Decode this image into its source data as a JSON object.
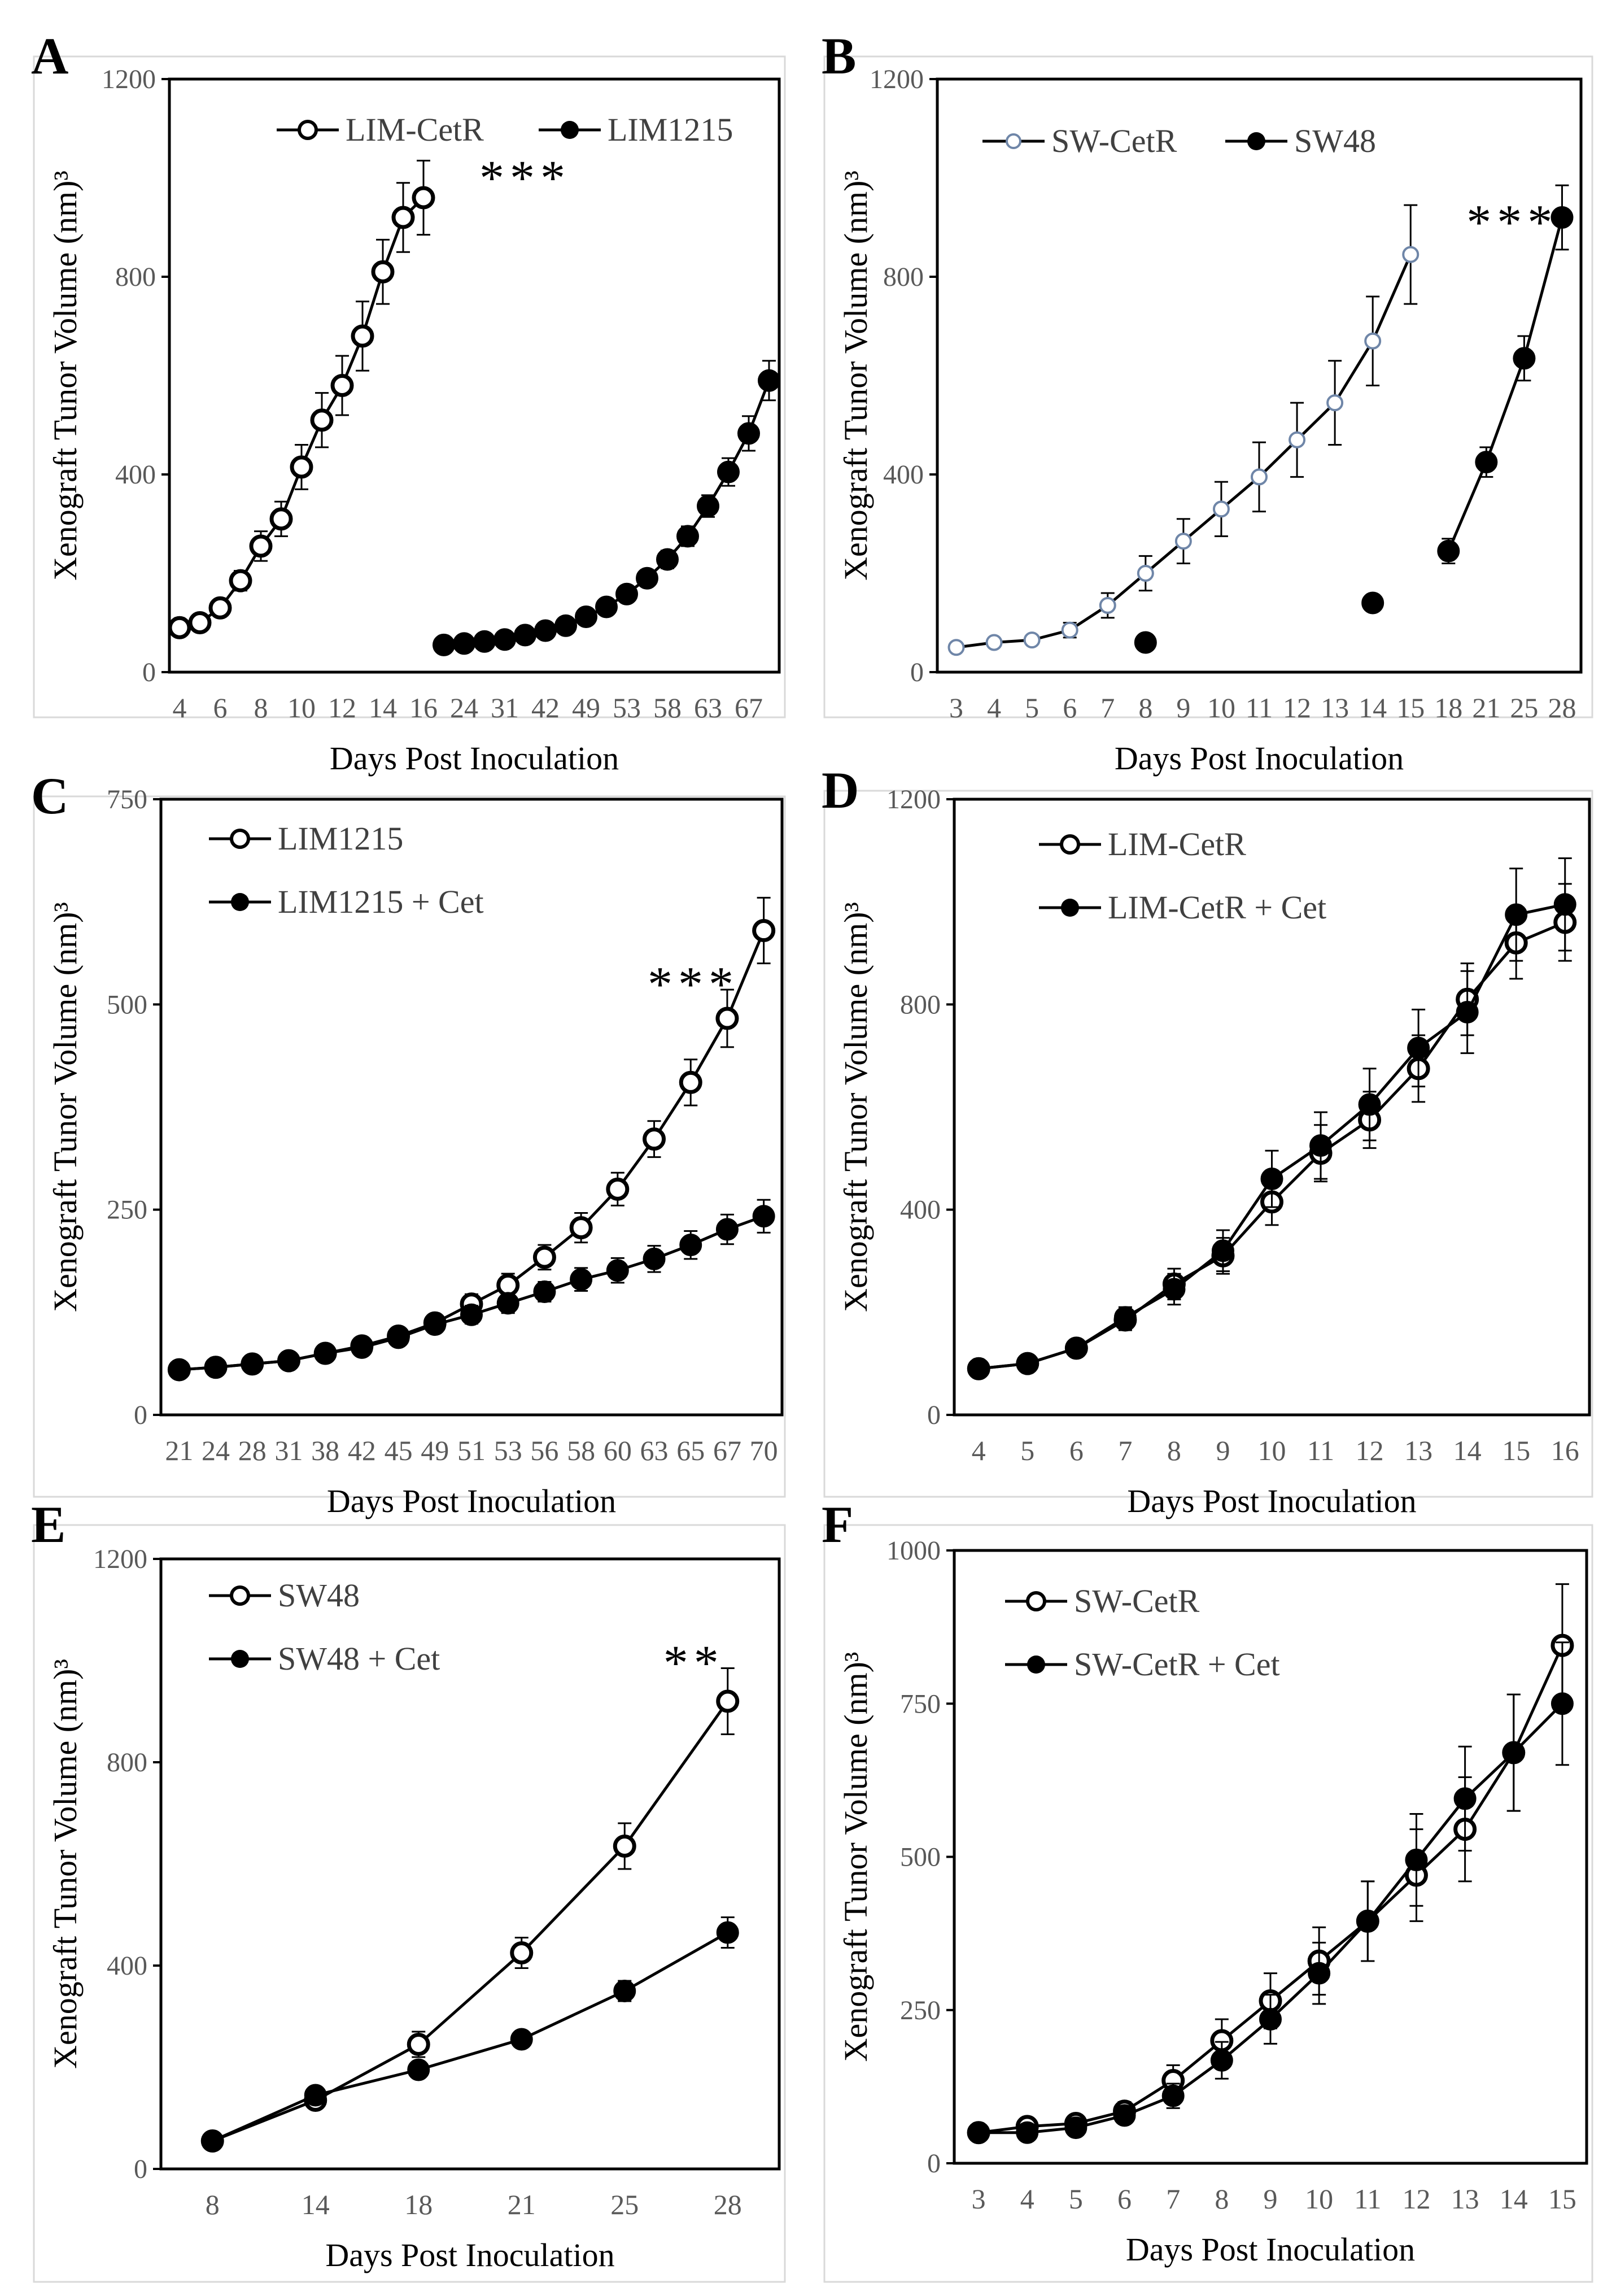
{
  "figure": {
    "style": {
      "line_color": "#000000",
      "hollow_fill": "#ffffff",
      "panel_b_accent": "#6f86a8",
      "axis_text": "#595959"
    }
  },
  "chart_data": [
    {
      "panel": "A",
      "type": "line",
      "title": "",
      "xlabel": "Days Post Inoculation",
      "ylabel": "Xenograft Tunor Volume (nm)³",
      "ylim": [
        0,
        1200
      ],
      "yticks": [
        0,
        400,
        800,
        1200
      ],
      "x": [
        "4",
        "5",
        "6",
        "7",
        "8",
        "9",
        "10",
        "11",
        "12",
        "13",
        "14",
        "15",
        "16",
        "21",
        "24",
        "28",
        "31",
        "38",
        "42",
        "45",
        "49",
        "51",
        "53",
        "56",
        "58",
        "60",
        "63",
        "65",
        "67",
        "70"
      ],
      "x_tick_labels": [
        "4",
        "6",
        "8",
        "10",
        "12",
        "14",
        "16",
        "24",
        "31",
        "42",
        "49",
        "53",
        "58",
        "63",
        "67"
      ],
      "x_tick_every": 2,
      "legend": "top",
      "annotations": [
        {
          "text": "***",
          "near_category": "16"
        }
      ],
      "series": [
        {
          "name": "LIM-CetR",
          "marker": "open",
          "values": [
            90,
            100,
            130,
            185,
            255,
            310,
            415,
            510,
            580,
            680,
            810,
            920,
            960,
            null,
            null,
            null,
            null,
            null,
            null,
            null,
            null,
            null,
            null,
            null,
            null,
            null,
            null,
            null,
            null,
            null
          ],
          "errors": [
            10,
            12,
            15,
            20,
            30,
            35,
            45,
            55,
            60,
            70,
            65,
            70,
            75,
            null,
            null,
            null,
            null,
            null,
            null,
            null,
            null,
            null,
            null,
            null,
            null,
            null,
            null,
            null,
            null,
            null
          ]
        },
        {
          "name": "LIM1215",
          "marker": "filled",
          "values": [
            null,
            null,
            null,
            null,
            null,
            null,
            null,
            null,
            null,
            null,
            null,
            null,
            null,
            55,
            58,
            62,
            66,
            75,
            84,
            94,
            112,
            132,
            158,
            190,
            228,
            275,
            336,
            405,
            483,
            590
          ],
          "errors": [
            null,
            null,
            null,
            null,
            null,
            null,
            null,
            null,
            null,
            null,
            null,
            null,
            null,
            5,
            5,
            6,
            6,
            7,
            8,
            9,
            10,
            12,
            14,
            15,
            18,
            20,
            22,
            28,
            35,
            40
          ]
        }
      ]
    },
    {
      "panel": "B",
      "type": "line",
      "title": "",
      "xlabel": "Days Post Inoculation",
      "ylabel": "Xenograft Tunor Volume (nm)³",
      "ylim": [
        0,
        1200
      ],
      "yticks": [
        0,
        400,
        800,
        1200
      ],
      "x": [
        "3",
        "4",
        "5",
        "6",
        "7",
        "8",
        "9",
        "10",
        "11",
        "12",
        "13",
        "14",
        "15",
        "18",
        "21",
        "25",
        "28"
      ],
      "x_tick_labels": [
        "3",
        "4",
        "5",
        "6",
        "7",
        "8",
        "9",
        "10",
        "11",
        "12",
        "13",
        "14",
        "15",
        "18",
        "21",
        "25",
        "28"
      ],
      "x_tick_every": 1,
      "legend": "top",
      "annotations": [
        {
          "text": "***",
          "near_category": "15"
        }
      ],
      "series": [
        {
          "name": "SW-CetR",
          "marker": "open",
          "accent": true,
          "connect": "all",
          "values": [
            50,
            60,
            65,
            85,
            135,
            200,
            265,
            330,
            395,
            470,
            545,
            670,
            845,
            null,
            null,
            null,
            null
          ],
          "errors": [
            5,
            6,
            7,
            15,
            25,
            35,
            45,
            55,
            70,
            75,
            85,
            90,
            100,
            null,
            null,
            null,
            null
          ]
        },
        {
          "name": "SW48",
          "marker": "filled",
          "connect_from": 13,
          "values": [
            null,
            null,
            null,
            null,
            null,
            60,
            null,
            null,
            null,
            null,
            null,
            140,
            null,
            245,
            425,
            635,
            920
          ],
          "errors": [
            null,
            null,
            null,
            null,
            null,
            0,
            null,
            null,
            null,
            null,
            null,
            12,
            null,
            25,
            30,
            45,
            65
          ]
        }
      ]
    },
    {
      "panel": "C",
      "type": "line",
      "title": "",
      "xlabel": "Days Post Inoculation",
      "ylabel": "Xenograft Tunor Volume (nm)³",
      "ylim": [
        0,
        750
      ],
      "yticks": [
        0,
        250,
        500,
        750
      ],
      "x": [
        "21",
        "24",
        "28",
        "31",
        "38",
        "42",
        "45",
        "49",
        "51",
        "53",
        "56",
        "58",
        "60",
        "63",
        "65",
        "67",
        "70"
      ],
      "x_tick_labels": [
        "21",
        "24",
        "28",
        "31",
        "38",
        "42",
        "45",
        "49",
        "51",
        "53",
        "56",
        "58",
        "60",
        "63",
        "65",
        "67",
        "70"
      ],
      "x_tick_every": 1,
      "legend": "top-left",
      "annotations": [
        {
          "text": "***",
          "near_category": "67"
        }
      ],
      "series": [
        {
          "name": "LIM1215",
          "marker": "open",
          "values": [
            55,
            58,
            62,
            66,
            75,
            84,
            96,
            112,
            135,
            158,
            192,
            228,
            275,
            336,
            405,
            483,
            590
          ],
          "errors": [
            5,
            5,
            6,
            6,
            7,
            8,
            9,
            10,
            12,
            14,
            15,
            18,
            20,
            22,
            28,
            35,
            40
          ]
        },
        {
          "name": "LIM1215 + Cet",
          "marker": "filled",
          "values": [
            55,
            58,
            62,
            66,
            75,
            82,
            94,
            110,
            122,
            136,
            150,
            165,
            176,
            190,
            207,
            226,
            242
          ],
          "errors": [
            5,
            5,
            6,
            6,
            7,
            8,
            9,
            10,
            11,
            12,
            12,
            14,
            15,
            16,
            17,
            18,
            20
          ]
        }
      ]
    },
    {
      "panel": "D",
      "type": "line",
      "title": "",
      "xlabel": "Days Post Inoculation",
      "ylabel": "Xenograft Tunor Volume (nm)³",
      "ylim": [
        0,
        1200
      ],
      "yticks": [
        0,
        400,
        800,
        1200
      ],
      "x": [
        "4",
        "5",
        "6",
        "7",
        "8",
        "9",
        "10",
        "11",
        "12",
        "13",
        "14",
        "15",
        "16"
      ],
      "x_tick_labels": [
        "4",
        "5",
        "6",
        "7",
        "8",
        "9",
        "10",
        "11",
        "12",
        "13",
        "14",
        "15",
        "16"
      ],
      "x_tick_every": 1,
      "legend": "top-left",
      "annotations": [],
      "series": [
        {
          "name": "LIM-CetR",
          "marker": "open",
          "values": [
            90,
            100,
            130,
            185,
            255,
            310,
            415,
            510,
            575,
            675,
            810,
            920,
            960
          ],
          "errors": [
            10,
            12,
            15,
            20,
            30,
            35,
            45,
            55,
            55,
            65,
            70,
            70,
            75
          ]
        },
        {
          "name": "LIM-CetR + Cet",
          "marker": "filled",
          "values": [
            90,
            100,
            130,
            190,
            245,
            320,
            460,
            525,
            605,
            715,
            785,
            975,
            995
          ],
          "errors": [
            10,
            12,
            15,
            20,
            30,
            40,
            55,
            65,
            70,
            75,
            80,
            90,
            90
          ]
        }
      ]
    },
    {
      "panel": "E",
      "type": "line",
      "title": "",
      "xlabel": "Days Post Inoculation",
      "ylabel": "Xenograft Tunor Volume (nm)³",
      "ylim": [
        0,
        1200
      ],
      "yticks": [
        0,
        400,
        800,
        1200
      ],
      "x": [
        "8",
        "14",
        "18",
        "21",
        "25",
        "28"
      ],
      "x_tick_labels": [
        "8",
        "14",
        "18",
        "21",
        "25",
        "28"
      ],
      "x_tick_every": 1,
      "legend": "top-left",
      "annotations": [
        {
          "text": "**",
          "near_category": "28"
        }
      ],
      "series": [
        {
          "name": "SW48",
          "marker": "open",
          "values": [
            55,
            135,
            245,
            425,
            635,
            920
          ],
          "errors": [
            0,
            12,
            25,
            30,
            45,
            65
          ]
        },
        {
          "name": "SW48 + Cet",
          "marker": "filled",
          "values": [
            55,
            145,
            195,
            255,
            350,
            465
          ],
          "errors": [
            0,
            10,
            15,
            15,
            20,
            30
          ]
        }
      ]
    },
    {
      "panel": "F",
      "type": "line",
      "title": "",
      "xlabel": "Days Post Inoculation",
      "ylabel": "Xenograft Tunor Volume (nm)³",
      "ylim": [
        0,
        1000
      ],
      "yticks": [
        0,
        250,
        500,
        750,
        1000
      ],
      "x": [
        "3",
        "4",
        "5",
        "6",
        "7",
        "8",
        "9",
        "10",
        "11",
        "12",
        "13",
        "14",
        "15"
      ],
      "x_tick_labels": [
        "3",
        "4",
        "5",
        "6",
        "7",
        "8",
        "9",
        "10",
        "11",
        "12",
        "13",
        "14",
        "15"
      ],
      "x_tick_every": 1,
      "legend": "top-left",
      "annotations": [],
      "series": [
        {
          "name": "SW-CetR",
          "marker": "open",
          "values": [
            50,
            60,
            65,
            85,
            135,
            200,
            265,
            330,
            395,
            470,
            545,
            670,
            845
          ],
          "errors": [
            5,
            6,
            7,
            15,
            25,
            35,
            45,
            55,
            65,
            75,
            85,
            95,
            100
          ]
        },
        {
          "name": "SW-CetR + Cet",
          "marker": "filled",
          "values": [
            50,
            50,
            58,
            78,
            110,
            168,
            235,
            310,
            395,
            495,
            595,
            670,
            750
          ],
          "errors": [
            5,
            6,
            7,
            12,
            20,
            30,
            40,
            50,
            65,
            75,
            85,
            95,
            100
          ]
        }
      ]
    }
  ]
}
